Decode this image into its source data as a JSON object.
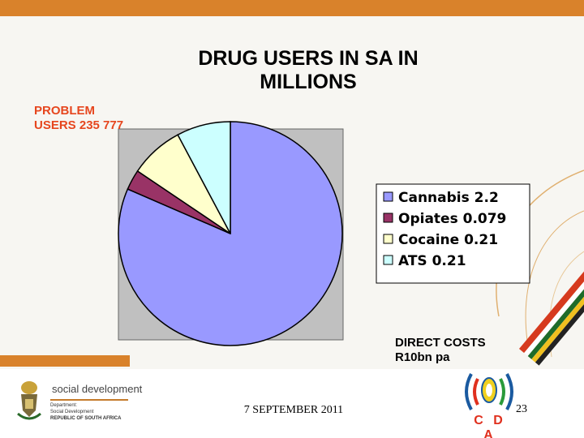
{
  "slide": {
    "title_line1": "DRUG USERS IN SA IN",
    "title_line2": "MILLIONS",
    "problem_line1": "PROBLEM",
    "problem_line2": "USERS 235 777",
    "direct_line1": "DIRECT COSTS",
    "direct_line2": "R10bn pa",
    "date": "7 SEPTEMBER 2011",
    "page_number": "23"
  },
  "footer": {
    "org_name": "social development",
    "dept_line1": "Department:",
    "dept_line2": "Social Development",
    "dept_line3": "REPUBLIC OF SOUTH AFRICA",
    "partner_logo_text": "C D A"
  },
  "colors": {
    "accent_orange": "#d9822b",
    "problem_red": "#e6461e",
    "plot_background": "#c0c0c0"
  },
  "chart_data": {
    "type": "pie",
    "title": "DRUG USERS IN SA IN MILLIONS",
    "legend_position": "right",
    "slices": [
      {
        "label": "Cannabis 2.2",
        "value": 2.2,
        "color": "#9999ff"
      },
      {
        "label": "Opiates 0.079",
        "value": 0.079,
        "color": "#993366"
      },
      {
        "label": "Cocaine 0.21",
        "value": 0.21,
        "color": "#ffffcc"
      },
      {
        "label": "ATS 0.21",
        "value": 0.21,
        "color": "#ccffff"
      }
    ]
  }
}
